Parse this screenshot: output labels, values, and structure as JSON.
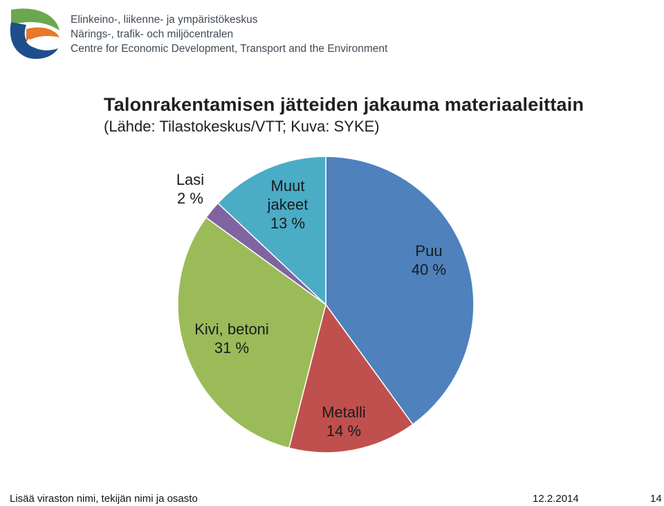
{
  "header": {
    "org_lines": [
      "Elinkeino-, liikenne- ja ympäristökeskus",
      "Närings-, trafik- och miljöcentralen",
      "Centre for Economic Development, Transport and the Environment"
    ],
    "logo_colors": {
      "green": "#6aa84f",
      "orange": "#e8782a",
      "blue": "#1f4e8c"
    }
  },
  "chart_data": {
    "type": "pie",
    "title": "Talonrakentamisen jätteiden jakauma materiaaleittain",
    "subtitle": "(Lähde: Tilastokeskus/VTT; Kuva: SYKE)",
    "slices": [
      {
        "label_lines": [
          "Puu",
          "40 %"
        ],
        "value": 40,
        "color": "#4f81bd"
      },
      {
        "label_lines": [
          "Metalli",
          "14 %"
        ],
        "value": 14,
        "color": "#c0504d"
      },
      {
        "label_lines": [
          "Kivi, betoni",
          "31 %"
        ],
        "value": 31,
        "color": "#9bbb59"
      },
      {
        "label_lines": [
          "Lasi",
          "2 %"
        ],
        "value": 2,
        "color": "#8064a2"
      },
      {
        "label_lines": [
          "Muut",
          "jakeet",
          "13 %"
        ],
        "value": 13,
        "color": "#4bacc6"
      }
    ]
  },
  "footer": {
    "left_text": "Lisää viraston nimi, tekijän nimi ja osasto",
    "date": "12.2.2014",
    "page_number": "14"
  }
}
